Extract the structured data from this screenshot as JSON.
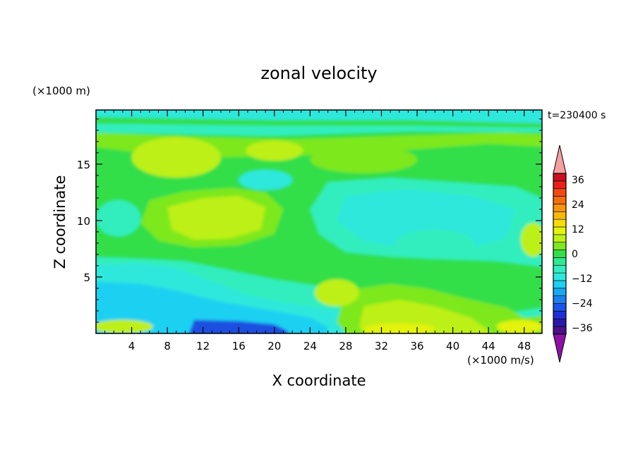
{
  "chart_data": {
    "type": "heatmap",
    "title": "zonal velocity",
    "xlabel": "X coordinate",
    "ylabel": "Z coordinate",
    "y_unit_label": "(×1000 m)",
    "x_unit_label": "(×1000 m/s)",
    "time_label": "t=230400 s",
    "xlim": [
      0,
      50
    ],
    "ylim": [
      0,
      19.8
    ],
    "x_ticks": [
      4,
      8,
      12,
      16,
      20,
      24,
      28,
      32,
      36,
      40,
      44,
      48
    ],
    "y_ticks": [
      5,
      10,
      15
    ],
    "colorbar": {
      "levels": [
        -42,
        -39,
        -36,
        -33,
        -30,
        -27,
        -24,
        -21,
        -18,
        -15,
        -12,
        -9,
        -6,
        -3,
        0,
        3,
        6,
        9,
        12,
        15,
        18,
        21,
        24,
        27,
        30,
        33,
        36,
        39,
        42
      ],
      "tick_labels": [
        "36",
        "24",
        "12",
        "0",
        "−12",
        "−24",
        "−36"
      ],
      "tick_values": [
        36,
        24,
        12,
        0,
        -12,
        -24,
        -36
      ],
      "colors_low_to_high": [
        "#4b0f8a",
        "#2a18a8",
        "#1f2fd8",
        "#1a56ea",
        "#1c80f0",
        "#19a8f4",
        "#1fd0f2",
        "#2ee8dc",
        "#33eebe",
        "#2fe890",
        "#33df48",
        "#7de81e",
        "#bdf016",
        "#e4f20f",
        "#f5dc0c",
        "#f8b80a",
        "#f9950a",
        "#f66d0c",
        "#f24a12",
        "#e8211a",
        "#c81022"
      ],
      "over_color": "#f4a0a0",
      "under_color": "#8e10a6"
    },
    "field_colors": {
      "deep_negative": "#1e4fe0",
      "negative": "#1fd0f2",
      "slightly_negative": "#2ee8dc",
      "near_zero": "#33eebe",
      "slightly_positive": "#33df48",
      "positive": "#7de81e",
      "more_positive": "#bdf016",
      "strong_positive": "#e4f20f"
    }
  }
}
